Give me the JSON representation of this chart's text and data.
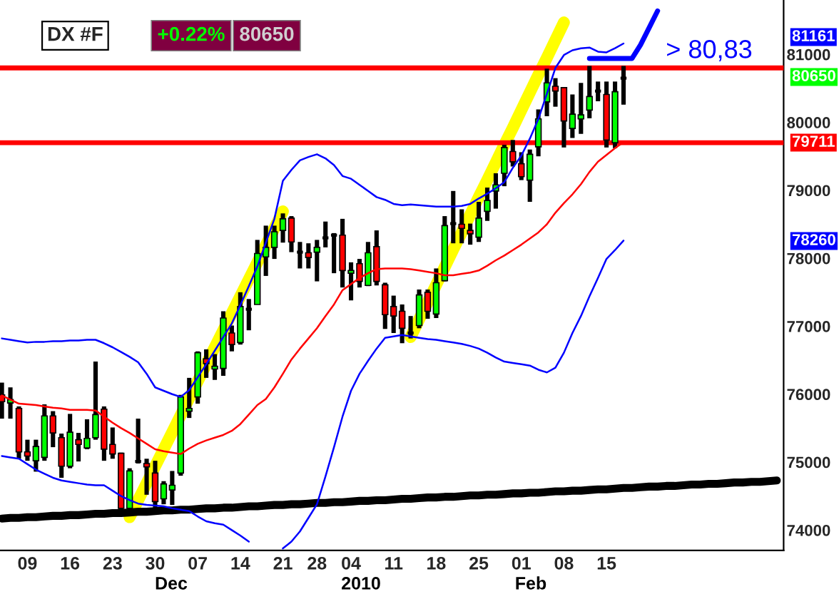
{
  "chart_data": {
    "type": "candlestick",
    "title": "DX #F",
    "categories": [
      null,
      null,
      null,
      "09",
      null,
      null,
      null,
      null,
      "16",
      null,
      null,
      null,
      null,
      "23",
      null,
      null,
      null,
      null,
      "30",
      null,
      null,
      null,
      null,
      "07",
      null,
      null,
      null,
      null,
      "14",
      null,
      null,
      null,
      null,
      "21",
      null,
      null,
      null,
      "28",
      null,
      null,
      null,
      "04",
      null,
      null,
      null,
      null,
      "11",
      null,
      null,
      null,
      null,
      "18",
      null,
      null,
      null,
      null,
      "25",
      null,
      null,
      null,
      null,
      "01",
      null,
      null,
      null,
      null,
      "08",
      null,
      null,
      null,
      null,
      "15",
      null,
      null,
      null,
      null,
      null,
      null,
      null,
      null,
      null,
      null,
      null,
      null,
      null,
      null,
      null,
      null,
      null,
      null,
      null,
      null
    ],
    "ohlc": [
      [
        75990,
        76170,
        75640,
        75890
      ],
      [
        75870,
        76100,
        75640,
        75920
      ],
      [
        75790,
        75820,
        75050,
        75150
      ],
      [
        75150,
        75330,
        75020,
        75090
      ],
      [
        75020,
        75330,
        74860,
        75230
      ],
      [
        75070,
        75850,
        75020,
        75680
      ],
      [
        75680,
        75750,
        75220,
        75430
      ],
      [
        75360,
        75420,
        74770,
        74940
      ],
      [
        74940,
        75710,
        74910,
        75440
      ],
      [
        75330,
        75430,
        75010,
        75260
      ],
      [
        75210,
        75630,
        75190,
        75350
      ],
      [
        75360,
        76480,
        75330,
        75700
      ],
      [
        75780,
        75820,
        75020,
        75190
      ],
      [
        75260,
        75510,
        75050,
        75120
      ],
      [
        75130,
        75140,
        74280,
        74320
      ],
      [
        74320,
        74910,
        74280,
        74870
      ],
      [
        75010,
        75640,
        74980,
        75010
      ],
      [
        74980,
        75050,
        74520,
        74930
      ],
      [
        74840,
        75020,
        74320,
        74420
      ],
      [
        74460,
        74720,
        74380,
        74680
      ],
      [
        74590,
        74870,
        74370,
        74660
      ],
      [
        74840,
        75990,
        74800,
        75960
      ],
      [
        75750,
        76240,
        75650,
        75790
      ],
      [
        75960,
        76630,
        75860,
        76610
      ],
      [
        76520,
        76660,
        76240,
        76450
      ],
      [
        76370,
        76590,
        76210,
        76410
      ],
      [
        76380,
        77220,
        76270,
        77120
      ],
      [
        76900,
        77010,
        76630,
        76730
      ],
      [
        76760,
        77500,
        76730,
        77290
      ],
      [
        77250,
        77400,
        76940,
        77250
      ],
      [
        77320,
        78270,
        77320,
        78070
      ],
      [
        78020,
        78480,
        77740,
        78160
      ],
      [
        78160,
        78480,
        77990,
        78390
      ],
      [
        78410,
        78660,
        78230,
        78580
      ],
      [
        78590,
        78620,
        78090,
        78240
      ],
      [
        78090,
        78240,
        77850,
        78090
      ],
      [
        78080,
        78220,
        77850,
        78010
      ],
      [
        78090,
        78270,
        77660,
        78160
      ],
      [
        78300,
        78540,
        78160,
        78300
      ],
      [
        78340,
        78370,
        77780,
        78340
      ],
      [
        78340,
        78580,
        77570,
        77820
      ],
      [
        77780,
        77940,
        77380,
        77820
      ],
      [
        77920,
        77990,
        77570,
        77660
      ],
      [
        77600,
        78240,
        77590,
        78080
      ],
      [
        78170,
        78410,
        77600,
        77660
      ],
      [
        77610,
        77640,
        76960,
        77170
      ],
      [
        77290,
        77450,
        76900,
        77150
      ],
      [
        77220,
        77320,
        76750,
        76970
      ],
      [
        76900,
        77150,
        76820,
        76900
      ],
      [
        77010,
        77540,
        76970,
        77460
      ],
      [
        77500,
        77540,
        77110,
        77220
      ],
      [
        77180,
        77850,
        77120,
        77640
      ],
      [
        77670,
        78620,
        77660,
        78480
      ],
      [
        78510,
        78990,
        78220,
        78510
      ],
      [
        78500,
        78720,
        78220,
        78440
      ],
      [
        78410,
        78510,
        78200,
        78360
      ],
      [
        78310,
        78830,
        78240,
        78590
      ],
      [
        78690,
        79040,
        78550,
        78850
      ],
      [
        78990,
        79250,
        78730,
        79080
      ],
      [
        79250,
        79670,
        79060,
        79630
      ],
      [
        79570,
        79740,
        79350,
        79420
      ],
      [
        79390,
        79560,
        79150,
        79200
      ],
      [
        79150,
        79600,
        78830,
        79530
      ],
      [
        79640,
        80190,
        79500,
        80050
      ],
      [
        80300,
        80790,
        80090,
        80580
      ],
      [
        80530,
        80650,
        80230,
        80460
      ],
      [
        80510,
        80520,
        79630,
        80020
      ],
      [
        79910,
        80410,
        79770,
        80120
      ],
      [
        80050,
        80580,
        79830,
        80110
      ],
      [
        80180,
        80830,
        80060,
        80380
      ],
      [
        80460,
        80600,
        80310,
        80460
      ],
      [
        80410,
        80600,
        79630,
        79740
      ],
      [
        79700,
        80600,
        79620,
        80450
      ],
      [
        80650,
        80830,
        80260,
        80650
      ],
      null,
      null,
      null,
      null,
      null,
      null,
      null,
      null,
      null,
      null,
      null,
      null,
      null,
      null,
      null,
      null,
      null,
      null
    ],
    "series": [
      {
        "type": "line",
        "color": "#0000ff",
        "values": [
          76820,
          76800,
          76780,
          76760,
          76770,
          76770,
          76780,
          76780,
          76790,
          76790,
          76800,
          76800,
          76750,
          76690,
          76620,
          76550,
          76470,
          76300,
          76100,
          76050,
          76000,
          75960,
          76060,
          76250,
          76440,
          76640,
          76840,
          77040,
          77310,
          77590,
          77880,
          78230,
          78580,
          79140,
          79300,
          79440,
          79490,
          79530,
          79470,
          79370,
          79210,
          79170,
          79080,
          78990,
          78900,
          78860,
          78800,
          78780,
          78790,
          78780,
          78770,
          78760,
          78760,
          78760,
          78770,
          78800,
          78880,
          78950,
          79030,
          79120,
          79330,
          79510,
          79760,
          80050,
          80420,
          80800,
          80990,
          81060,
          81090,
          81100,
          81040,
          81030,
          81090,
          81160,
          null,
          null,
          null,
          null,
          null,
          null,
          null,
          null,
          null,
          null,
          null,
          null,
          null,
          null,
          null,
          null,
          null,
          null
        ]
      },
      {
        "type": "line",
        "color": "#ff0000",
        "values": [
          75980,
          75920,
          75860,
          75850,
          75840,
          75820,
          75800,
          75790,
          75770,
          75770,
          75770,
          75760,
          75670,
          75580,
          75500,
          75430,
          75350,
          75270,
          75190,
          75160,
          75140,
          75120,
          75200,
          75270,
          75320,
          75360,
          75400,
          75460,
          75560,
          75700,
          75840,
          75930,
          76100,
          76300,
          76510,
          76670,
          76820,
          76970,
          77150,
          77320,
          77530,
          77620,
          77710,
          77780,
          77840,
          77850,
          77850,
          77850,
          77840,
          77820,
          77800,
          77780,
          77750,
          77750,
          77770,
          77790,
          77820,
          77890,
          77970,
          78040,
          78120,
          78200,
          78290,
          78380,
          78500,
          78670,
          78810,
          78940,
          79090,
          79270,
          79420,
          79520,
          79620,
          79710,
          null,
          null,
          null,
          null,
          null,
          null,
          null,
          null,
          null,
          null,
          null,
          null,
          null,
          null,
          null,
          null,
          null,
          null
        ]
      },
      {
        "type": "line",
        "color": "#0000ff",
        "values": [
          75090,
          75070,
          75050,
          74970,
          74890,
          74830,
          74770,
          74730,
          74710,
          74690,
          74670,
          74660,
          74660,
          74580,
          74500,
          74440,
          74390,
          74370,
          74360,
          74350,
          74320,
          74300,
          74280,
          74200,
          74130,
          74100,
          74080,
          74000,
          73920,
          73830,
          null,
          null,
          null,
          73730,
          73830,
          73980,
          74180,
          74380,
          74790,
          75220,
          75670,
          76050,
          76300,
          76490,
          76670,
          76830,
          76850,
          76870,
          76850,
          76830,
          76810,
          76800,
          76780,
          76760,
          76740,
          76710,
          76670,
          76610,
          76540,
          76480,
          76460,
          76440,
          76420,
          76360,
          76320,
          76390,
          76610,
          76900,
          77150,
          77440,
          77710,
          77990,
          78120,
          78260,
          null,
          null,
          null,
          null,
          null,
          null,
          null,
          null,
          null,
          null,
          null,
          null,
          null,
          null,
          null,
          null,
          null,
          null
        ]
      },
      {
        "type": "line",
        "color": "#ffff00",
        "values": [
          null,
          null,
          null,
          null,
          null,
          null,
          null,
          null,
          null,
          null,
          null,
          null,
          null,
          null,
          null,
          74190,
          74440,
          74690,
          74940,
          75190,
          75440,
          75690,
          75940,
          76190,
          76440,
          76690,
          76940,
          77190,
          77440,
          77690,
          77940,
          78190,
          78440,
          78690,
          null,
          null,
          null,
          null,
          null,
          null,
          null,
          null,
          null,
          null,
          null,
          null,
          null,
          null,
          null,
          null,
          null,
          null,
          null,
          null,
          null,
          null,
          null,
          null,
          null,
          null,
          null,
          null,
          null,
          null,
          null,
          null,
          null,
          null,
          null,
          null,
          null,
          null,
          null,
          null,
          null,
          null,
          null,
          null,
          null,
          null,
          null,
          null,
          null,
          null,
          null,
          null,
          null,
          null,
          null,
          null,
          null,
          null
        ]
      },
      {
        "type": "line",
        "color": "#ffff00",
        "values": [
          null,
          null,
          null,
          null,
          null,
          null,
          null,
          null,
          null,
          null,
          null,
          null,
          null,
          null,
          null,
          null,
          null,
          null,
          null,
          null,
          null,
          null,
          null,
          null,
          null,
          null,
          null,
          null,
          null,
          null,
          null,
          null,
          null,
          null,
          null,
          null,
          null,
          null,
          null,
          null,
          null,
          null,
          null,
          null,
          null,
          null,
          null,
          null,
          76840,
          77100,
          77350,
          77610,
          77870,
          78130,
          78380,
          78640,
          78900,
          79150,
          79410,
          79670,
          79920,
          80180,
          80440,
          80700,
          80950,
          81210,
          81470,
          null,
          null,
          null,
          null,
          null,
          null,
          null,
          null,
          null,
          null,
          null,
          null,
          null,
          null,
          null,
          null,
          null,
          null,
          null,
          null,
          null,
          null,
          null,
          null,
          null
        ]
      },
      {
        "type": "line",
        "color": "#000000",
        "values": [
          74170,
          74180,
          74180,
          74190,
          74190,
          74200,
          74210,
          74210,
          74220,
          74220,
          74230,
          74240,
          74240,
          74250,
          74250,
          74260,
          74270,
          74270,
          74280,
          74290,
          74290,
          74300,
          74300,
          74310,
          74320,
          74320,
          74330,
          74330,
          74340,
          74350,
          74350,
          74360,
          74370,
          74370,
          74380,
          74380,
          74390,
          74400,
          74400,
          74410,
          74410,
          74420,
          74430,
          74430,
          74440,
          74440,
          74450,
          74460,
          74460,
          74470,
          74480,
          74480,
          74490,
          74490,
          74500,
          74510,
          74510,
          74520,
          74520,
          74530,
          74540,
          74540,
          74550,
          74550,
          74560,
          74570,
          74570,
          74580,
          74580,
          74590,
          74600,
          74600,
          74610,
          74620,
          74620,
          74630,
          74640,
          74640,
          74650,
          74650,
          74660,
          74670,
          74670,
          74680,
          74680,
          74690,
          74700,
          74700,
          74710,
          74710,
          74720,
          74730
        ]
      },
      {
        "type": "line",
        "color": "#0000ff",
        "values": [
          null,
          null,
          null,
          null,
          null,
          null,
          null,
          null,
          null,
          null,
          null,
          null,
          null,
          null,
          null,
          null,
          null,
          null,
          null,
          null,
          null,
          null,
          null,
          null,
          null,
          null,
          null,
          null,
          null,
          null,
          null,
          null,
          null,
          null,
          null,
          null,
          null,
          null,
          null,
          null,
          null,
          null,
          null,
          null,
          null,
          null,
          null,
          null,
          null,
          null,
          null,
          null,
          null,
          null,
          null,
          null,
          null,
          null,
          null,
          null,
          null,
          null,
          null,
          null,
          null,
          null,
          null,
          null,
          null,
          80940,
          80940,
          80940,
          80940,
          80940,
          80940,
          81140,
          81390,
          81640,
          null,
          null,
          null,
          null,
          null,
          null,
          null,
          null,
          null,
          null,
          null,
          null,
          null,
          null
        ]
      }
    ],
    "ref_lines": [
      {
        "axis": "y",
        "value": 80800,
        "color": "#ff0000"
      },
      {
        "axis": "y",
        "value": 79700,
        "color": "#ff0000"
      }
    ],
    "annotations": [
      "+0.22%",
      "80650",
      "> 80,83",
      "Dec",
      "2010",
      "Feb",
      "81161",
      "80650",
      "79711",
      "78260"
    ],
    "ylim": [
      73700,
      81800
    ],
    "yticks": [
      74000,
      75000,
      76000,
      77000,
      78000,
      79000,
      80000,
      81000
    ],
    "grid": false,
    "legend": false
  }
}
